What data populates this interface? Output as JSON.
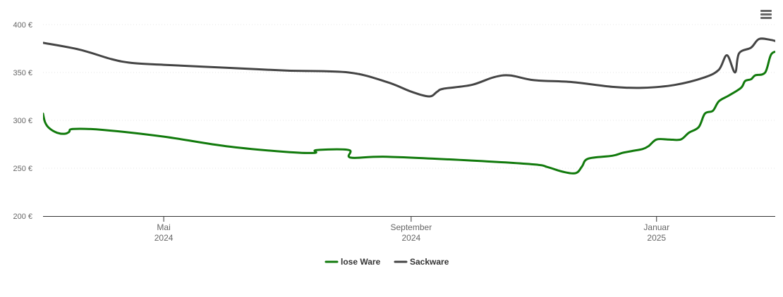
{
  "menu": {
    "icon": "hamburger-menu-icon"
  },
  "chart_data": {
    "type": "line",
    "title": "",
    "xlabel": "",
    "ylabel": "",
    "ylim": [
      200,
      400
    ],
    "y_ticks": [
      "200 €",
      "250 €",
      "300 €",
      "350 €",
      "400 €"
    ],
    "x_ticks": [
      {
        "date": "2024-05-01",
        "month": "Mai",
        "year": "2024"
      },
      {
        "date": "2024-09-01",
        "month": "September",
        "year": "2024"
      },
      {
        "date": "2025-01-01",
        "month": "Januar",
        "year": "2025"
      }
    ],
    "xlim": [
      "2024-03-02",
      "2025-03-01"
    ],
    "grid": "horizontal",
    "legend_position": "bottom-center",
    "series": [
      {
        "name": "lose Ware",
        "color": "#117a0c",
        "points": [
          [
            "2024-03-02",
            307
          ],
          [
            "2024-03-03",
            298
          ],
          [
            "2024-03-05",
            292
          ],
          [
            "2024-03-09",
            287
          ],
          [
            "2024-03-13",
            286
          ],
          [
            "2024-03-15",
            288
          ],
          [
            "2024-03-17",
            291
          ],
          [
            "2024-04-01",
            290
          ],
          [
            "2024-05-01",
            283
          ],
          [
            "2024-06-01",
            273
          ],
          [
            "2024-07-01",
            267
          ],
          [
            "2024-07-15",
            266
          ],
          [
            "2024-07-16",
            269
          ],
          [
            "2024-08-01",
            269
          ],
          [
            "2024-08-02",
            261
          ],
          [
            "2024-08-20",
            262
          ],
          [
            "2024-10-01",
            258
          ],
          [
            "2024-11-01",
            254
          ],
          [
            "2024-11-08",
            251
          ],
          [
            "2024-11-16",
            246
          ],
          [
            "2024-11-22",
            245
          ],
          [
            "2024-11-25",
            252
          ],
          [
            "2024-11-28",
            260
          ],
          [
            "2024-12-10",
            263
          ],
          [
            "2024-12-15",
            266
          ],
          [
            "2024-12-20",
            268
          ],
          [
            "2024-12-25",
            270
          ],
          [
            "2024-12-28",
            273
          ],
          [
            "2025-01-01",
            280
          ],
          [
            "2025-01-07",
            280
          ],
          [
            "2025-01-13",
            280
          ],
          [
            "2025-01-17",
            287
          ],
          [
            "2025-01-22",
            293
          ],
          [
            "2025-01-25",
            307
          ],
          [
            "2025-01-29",
            310
          ],
          [
            "2025-02-01",
            320
          ],
          [
            "2025-02-06",
            326
          ],
          [
            "2025-02-12",
            334
          ],
          [
            "2025-02-14",
            341
          ],
          [
            "2025-02-17",
            343
          ],
          [
            "2025-02-19",
            347
          ],
          [
            "2025-02-24",
            350
          ],
          [
            "2025-02-27",
            369
          ],
          [
            "2025-03-03",
            372
          ],
          [
            "2025-03-09",
            374
          ]
        ]
      },
      {
        "name": "Sackware",
        "color": "#444444",
        "points": [
          [
            "2024-03-02",
            381
          ],
          [
            "2024-03-20",
            374
          ],
          [
            "2024-04-05",
            364
          ],
          [
            "2024-04-15",
            360
          ],
          [
            "2024-05-01",
            358
          ],
          [
            "2024-06-01",
            355
          ],
          [
            "2024-07-01",
            352
          ],
          [
            "2024-08-01",
            350
          ],
          [
            "2024-08-20",
            340
          ],
          [
            "2024-09-01",
            330
          ],
          [
            "2024-09-10",
            325
          ],
          [
            "2024-09-14",
            330
          ],
          [
            "2024-09-17",
            333
          ],
          [
            "2024-10-01",
            337
          ],
          [
            "2024-10-12",
            345
          ],
          [
            "2024-10-20",
            347
          ],
          [
            "2024-11-01",
            342
          ],
          [
            "2024-11-20",
            340
          ],
          [
            "2024-12-10",
            335
          ],
          [
            "2024-12-25",
            334
          ],
          [
            "2025-01-10",
            337
          ],
          [
            "2025-01-25",
            345
          ],
          [
            "2025-02-01",
            353
          ],
          [
            "2025-02-05",
            368
          ],
          [
            "2025-02-09",
            350
          ],
          [
            "2025-02-11",
            370
          ],
          [
            "2025-02-17",
            376
          ],
          [
            "2025-02-21",
            385
          ],
          [
            "2025-02-27",
            384
          ],
          [
            "2025-03-04",
            382
          ],
          [
            "2025-03-09",
            388
          ]
        ]
      }
    ]
  }
}
